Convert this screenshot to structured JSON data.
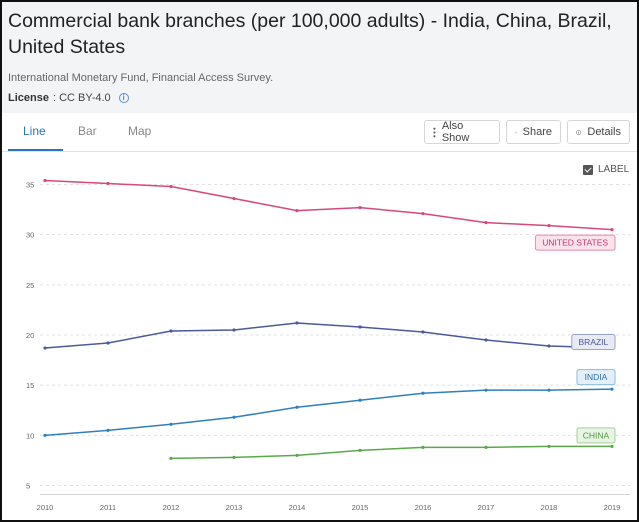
{
  "header": {
    "title": "Commercial bank branches (per 100,000 adults) - India, China, Brazil, United States",
    "source": "International Monetary Fund, Financial Access Survey.",
    "license_label": "License",
    "license_value": ": CC BY-4.0",
    "info_icon": "info-icon"
  },
  "tabs": [
    {
      "label": "Line",
      "active": true
    },
    {
      "label": "Bar",
      "active": false
    },
    {
      "label": "Map",
      "active": false
    }
  ],
  "toolbar": {
    "also_show_label": "Also Show",
    "share_label": "Share",
    "details_label": "Details",
    "icons": [
      "vertical-dots-icon",
      "share-icon",
      "info-circle-icon"
    ]
  },
  "label_toggle": {
    "label": "LABEL",
    "checked": true
  },
  "chart_data": {
    "type": "line",
    "x": [
      2010,
      2011,
      2012,
      2013,
      2014,
      2015,
      2016,
      2017,
      2018,
      2019
    ],
    "x_tick_labels": [
      "2010",
      "2011",
      "2012",
      "2013",
      "2014",
      "2015",
      "2016",
      "2017",
      "2018",
      "2019"
    ],
    "y_ticks": [
      5,
      10,
      15,
      20,
      25,
      30,
      35
    ],
    "y_tick_labels": [
      "5",
      "10",
      "15",
      "20",
      "25",
      "30",
      "35"
    ],
    "ylim": [
      4.5,
      36.5
    ],
    "grid": "horizontal dashed",
    "series": [
      {
        "name": "UNITED STATES",
        "color": "#d6487e",
        "label_bg": "#fbe3ec",
        "label_border": "#e48aae",
        "label_color": "#c23a6e",
        "values": [
          35.4,
          35.1,
          34.8,
          33.6,
          32.4,
          32.7,
          32.1,
          31.2,
          30.9,
          30.5
        ]
      },
      {
        "name": "BRAZIL",
        "color": "#4a5a9a",
        "label_bg": "#e8eaf4",
        "label_border": "#9aa3c8",
        "label_color": "#4a5a9a",
        "values": [
          18.7,
          19.2,
          20.4,
          20.5,
          21.2,
          20.8,
          20.3,
          19.5,
          18.9,
          18.7
        ]
      },
      {
        "name": "INDIA",
        "color": "#2f7fbf",
        "label_bg": "#e3f0fa",
        "label_border": "#8cbbe0",
        "label_color": "#2f6fa8",
        "values": [
          10.0,
          10.5,
          11.1,
          11.8,
          12.8,
          13.5,
          14.2,
          14.5,
          14.5,
          14.6
        ]
      },
      {
        "name": "CHINA",
        "color": "#5aa84a",
        "label_bg": "#e8f4e4",
        "label_border": "#a4cf98",
        "label_color": "#4f9a40",
        "values": [
          null,
          null,
          7.7,
          7.8,
          8.0,
          8.5,
          8.8,
          8.8,
          8.9,
          8.9
        ]
      }
    ]
  }
}
